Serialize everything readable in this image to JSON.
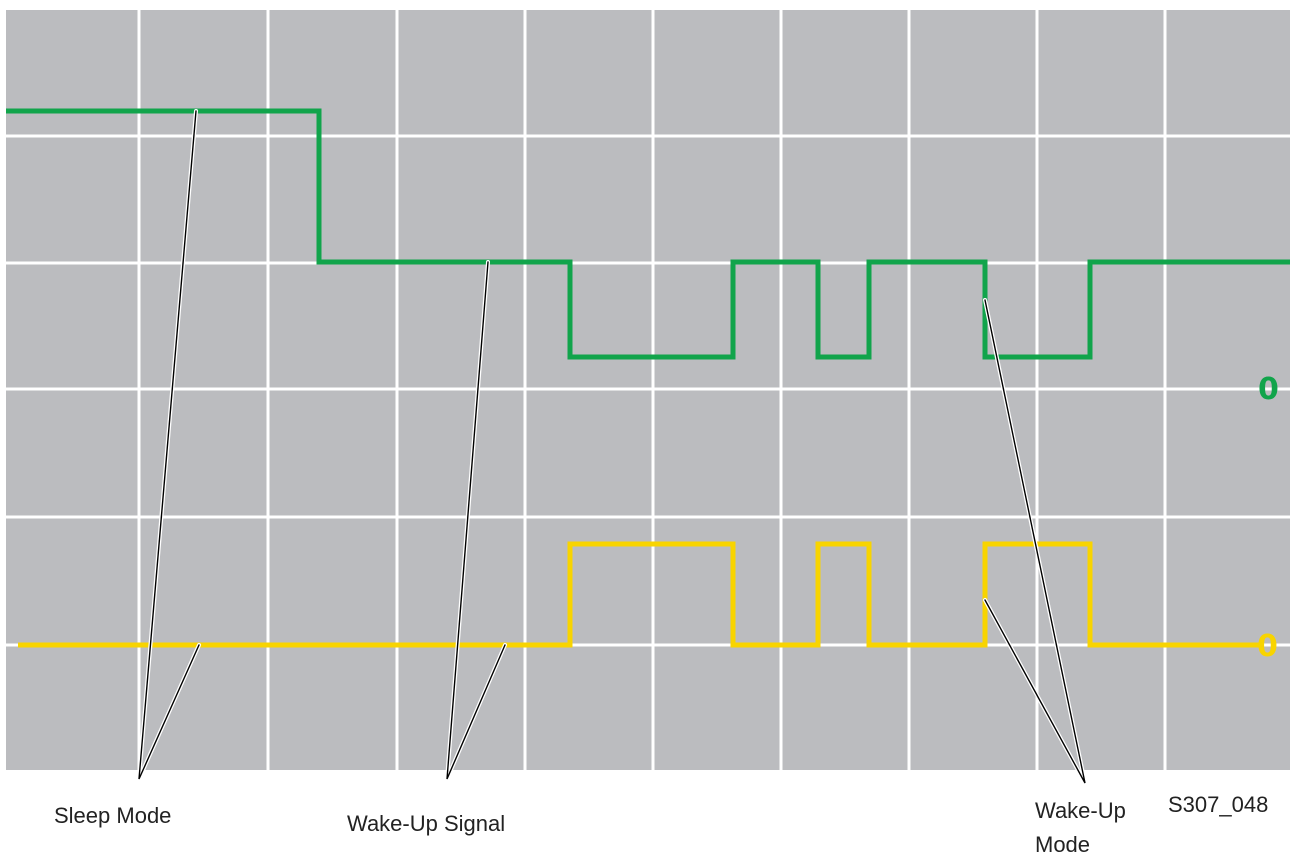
{
  "figure_id": "S307_048",
  "colors": {
    "background": "#bbbcbf",
    "grid": "#ffffff",
    "trace_top": "#11a44b",
    "trace_bottom": "#f8d400",
    "callout": "#000000",
    "label_text": "#222222"
  },
  "traces": {
    "top": {
      "zero_label": "0"
    },
    "bottom": {
      "zero_label": "0"
    }
  },
  "callouts": {
    "sleep_mode": "Sleep Mode",
    "wake_up_signal": "Wake-Up Signal",
    "wake_up_mode_line1": "Wake-Up",
    "wake_up_mode_line2": "Mode"
  }
}
